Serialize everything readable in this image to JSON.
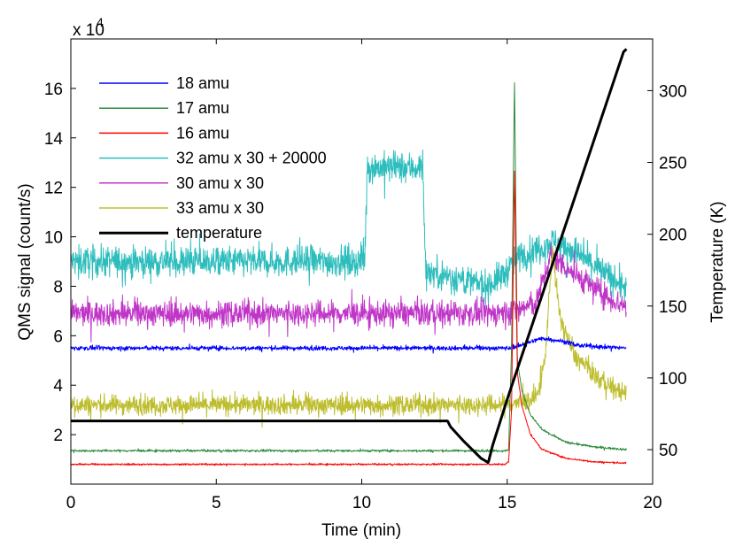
{
  "chart_data": {
    "type": "line",
    "title": "",
    "xlabel": "Time (min)",
    "ylabel": "QMS signal (count/s)",
    "y2label": "Temperature (K)",
    "y_multiplier_label": "x 10",
    "y_multiplier_exponent": "4",
    "xlim": [
      0,
      20
    ],
    "ylim": [
      0,
      18
    ],
    "y2lim": [
      26,
      336
    ],
    "x_ticks": [
      0,
      5,
      10,
      15,
      20
    ],
    "y_ticks": [
      2,
      4,
      6,
      8,
      10,
      12,
      14,
      16
    ],
    "y2_ticks": [
      50,
      100,
      150,
      200,
      250,
      300
    ],
    "grid": false,
    "legend_position": "top-left",
    "series": [
      {
        "name": "18 amu",
        "color": "#0000ff",
        "axis": "left",
        "x": [
          0,
          14.9,
          15.1,
          15.4,
          16.2,
          16.8,
          17.5,
          19.1
        ],
        "values": [
          5.5,
          5.5,
          5.5,
          5.6,
          5.9,
          5.8,
          5.6,
          5.5
        ],
        "noise": 0.08
      },
      {
        "name": "17 amu",
        "color": "#2e8b3d",
        "axis": "left",
        "x": [
          0,
          14.9,
          15.05,
          15.15,
          15.25,
          15.35,
          15.5,
          15.8,
          16.2,
          17,
          18,
          19.1
        ],
        "values": [
          1.35,
          1.35,
          1.4,
          5.5,
          16.5,
          5.0,
          3.8,
          2.8,
          2.2,
          1.7,
          1.5,
          1.4
        ],
        "noise": 0.04
      },
      {
        "name": "16 amu",
        "color": "#ff0000",
        "axis": "left",
        "x": [
          0,
          14.9,
          15.05,
          15.15,
          15.25,
          15.35,
          15.5,
          15.8,
          16.2,
          17,
          18,
          19.1
        ],
        "values": [
          0.8,
          0.8,
          0.9,
          3.0,
          12.8,
          4.5,
          3.2,
          2.0,
          1.4,
          1.05,
          0.9,
          0.85
        ],
        "noise": 0.03
      },
      {
        "name": "32 amu x 30 + 20000",
        "color": "#2ebdbd",
        "axis": "left",
        "x": [
          0,
          10.1,
          10.2,
          12.1,
          12.2,
          13,
          14.3,
          14.9,
          15.4,
          16.0,
          16.6,
          17.2,
          18.5,
          19.1
        ],
        "values": [
          9.0,
          9.0,
          12.8,
          12.8,
          8.6,
          8.4,
          8.0,
          8.5,
          9.2,
          9.5,
          9.8,
          9.5,
          8.4,
          7.9
        ],
        "noise": 0.55
      },
      {
        "name": "30 amu x 30",
        "color": "#c035c8",
        "axis": "left",
        "x": [
          0,
          10,
          12,
          14.5,
          15.2,
          16,
          16.5,
          17.2,
          18.5,
          19.1
        ],
        "values": [
          6.9,
          6.9,
          6.9,
          6.9,
          7.0,
          7.3,
          9.3,
          8.6,
          7.5,
          7.2
        ],
        "noise": 0.45
      },
      {
        "name": "33 amu x 30",
        "color": "#bdbd2e",
        "axis": "left",
        "x": [
          0,
          13,
          14.5,
          15.5,
          16.0,
          16.3,
          16.55,
          16.8,
          17.3,
          18.2,
          19.1
        ],
        "values": [
          3.2,
          3.2,
          3.2,
          3.3,
          3.5,
          5.0,
          9.6,
          6.8,
          5.2,
          4.2,
          3.6
        ],
        "noise": 0.35
      },
      {
        "name": "temperature",
        "color": "#000000",
        "axis": "right",
        "x": [
          0,
          12.95,
          13.05,
          13.5,
          14.1,
          14.35,
          14.5,
          15.0,
          19.0,
          19.1
        ],
        "values": [
          70,
          70,
          66,
          56,
          44,
          41,
          53,
          85,
          327,
          329
        ],
        "noise": 0
      }
    ]
  }
}
